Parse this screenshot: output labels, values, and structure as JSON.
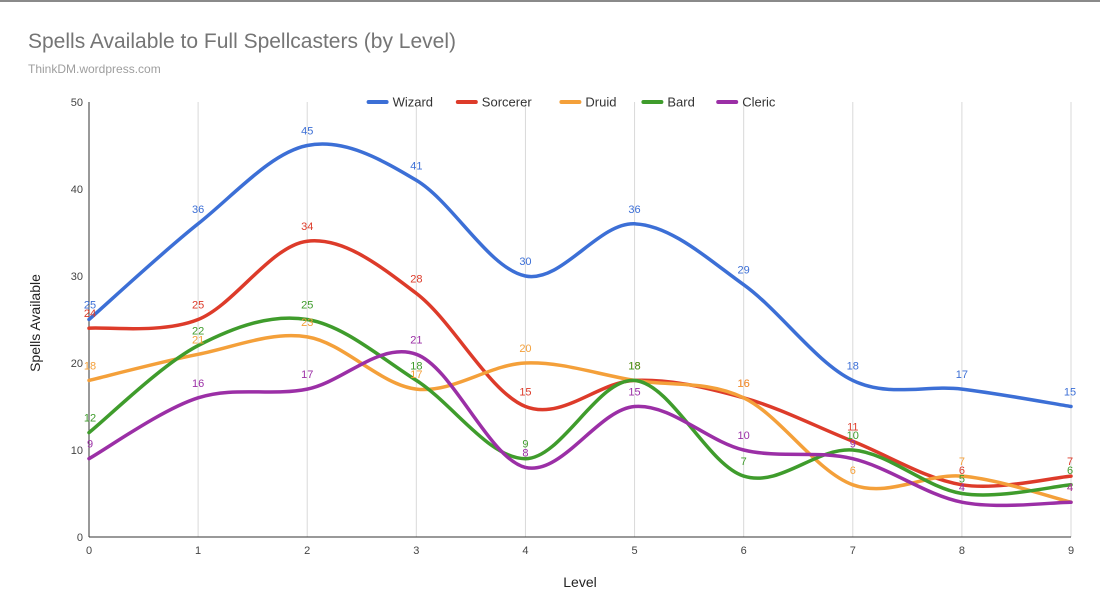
{
  "chart_data": {
    "type": "line",
    "title": "Spells Available to Full Spellcasters (by Level)",
    "subtitle": "ThinkDM.wordpress.com",
    "xlabel": "Level",
    "ylabel": "Spells Available",
    "x": [
      0,
      1,
      2,
      3,
      4,
      5,
      6,
      7,
      8,
      9
    ],
    "ylim": [
      0,
      50
    ],
    "yticks": [
      0,
      10,
      20,
      30,
      40,
      50
    ],
    "grid": "vertical",
    "legend": "top",
    "smooth": true,
    "series": [
      {
        "name": "Wizard",
        "color": "#3c6fd6",
        "values": [
          25,
          36,
          45,
          41,
          30,
          36,
          29,
          18,
          17,
          15
        ]
      },
      {
        "name": "Sorcerer",
        "color": "#dd3b2a",
        "values": [
          24,
          25,
          34,
          28,
          15,
          18,
          16,
          11,
          6,
          7
        ]
      },
      {
        "name": "Druid",
        "color": "#f4a03a",
        "values": [
          18,
          21,
          23,
          17,
          20,
          18,
          16,
          6,
          7,
          4
        ]
      },
      {
        "name": "Bard",
        "color": "#3f9c2c",
        "values": [
          12,
          22,
          25,
          18,
          9,
          18,
          7,
          10,
          5,
          6
        ]
      },
      {
        "name": "Cleric",
        "color": "#9b2fa6",
        "values": [
          9,
          16,
          17,
          21,
          8,
          15,
          10,
          9,
          4,
          4
        ]
      }
    ]
  }
}
